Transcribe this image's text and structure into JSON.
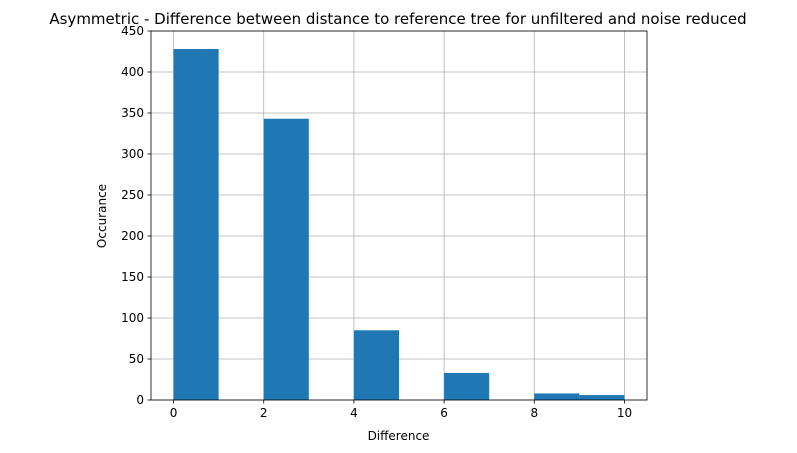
{
  "chart_data": {
    "type": "bar",
    "title": "Asymmetric - Difference between distance to reference tree for unfiltered and noise reduced",
    "xlabel": "Difference",
    "ylabel": "Occurance",
    "xlim": [
      -0.5,
      10.5
    ],
    "ylim": [
      0,
      450
    ],
    "xticks": [
      0,
      2,
      4,
      6,
      8,
      10
    ],
    "yticks": [
      0,
      50,
      100,
      150,
      200,
      250,
      300,
      350,
      400,
      450
    ],
    "grid": true,
    "bar_color": "#1f77b4",
    "bins": [
      {
        "x0": 0,
        "x1": 1,
        "value": 428
      },
      {
        "x0": 1,
        "x1": 2,
        "value": 0
      },
      {
        "x0": 2,
        "x1": 3,
        "value": 343
      },
      {
        "x0": 3,
        "x1": 4,
        "value": 0
      },
      {
        "x0": 4,
        "x1": 5,
        "value": 85
      },
      {
        "x0": 5,
        "x1": 6,
        "value": 0
      },
      {
        "x0": 6,
        "x1": 7,
        "value": 33
      },
      {
        "x0": 7,
        "x1": 8,
        "value": 0
      },
      {
        "x0": 8,
        "x1": 9,
        "value": 8
      },
      {
        "x0": 9,
        "x1": 10,
        "value": 6
      }
    ]
  }
}
